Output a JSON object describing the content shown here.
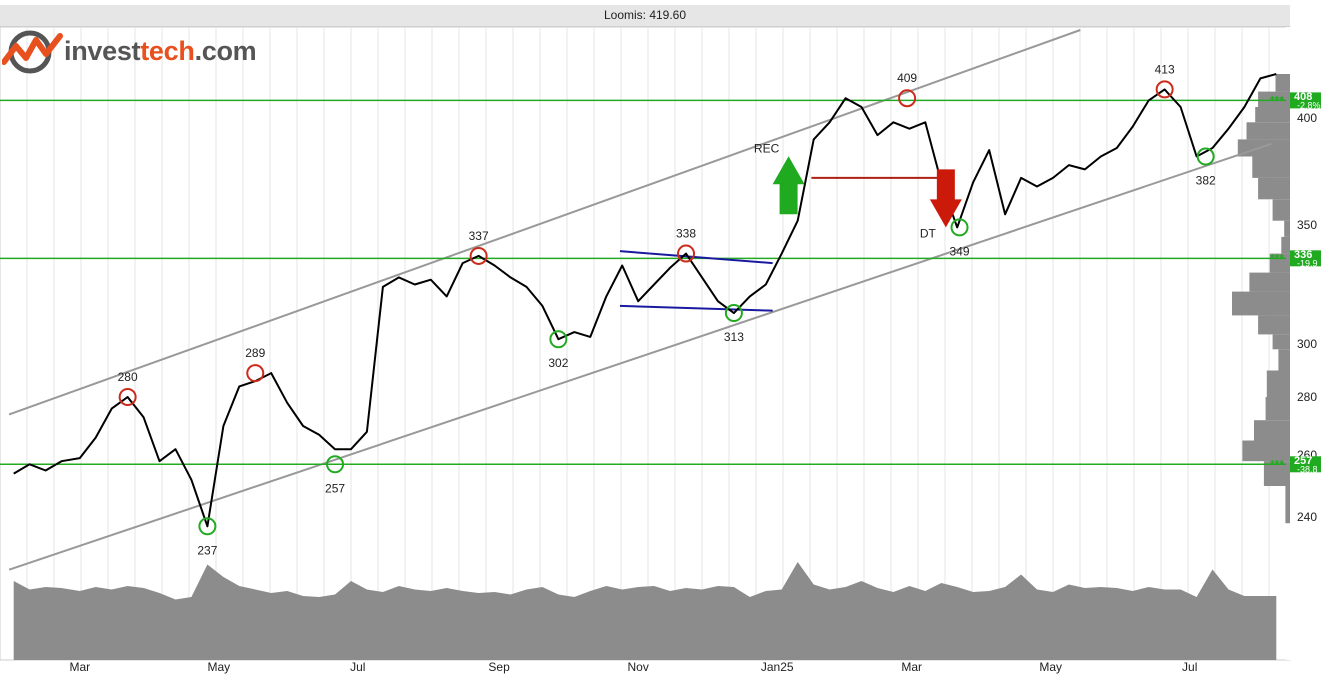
{
  "brand": {
    "prefix": "invest",
    "accent": "tech",
    "suffix": ".com"
  },
  "chart_data": {
    "type": "line",
    "title": "Loomis: 419.60",
    "y_axis": {
      "side": "right",
      "ticks": [
        240,
        260,
        280,
        300,
        350,
        400
      ]
    },
    "x_axis": {
      "ticks": [
        "Mar",
        "May",
        "Jul",
        "Sep",
        "Nov",
        "Jan25",
        "Mar",
        "May",
        "Jul"
      ]
    },
    "price_series": {
      "x": [
        "2024-02-01",
        "2024-02-08",
        "2024-02-15",
        "2024-02-22",
        "2024-03-01",
        "2024-03-08",
        "2024-03-15",
        "2024-03-22",
        "2024-03-29",
        "2024-04-05",
        "2024-04-12",
        "2024-04-19",
        "2024-04-26",
        "2024-05-03",
        "2024-05-10",
        "2024-05-17",
        "2024-05-24",
        "2024-05-31",
        "2024-06-07",
        "2024-06-14",
        "2024-06-21",
        "2024-06-28",
        "2024-07-05",
        "2024-07-12",
        "2024-07-19",
        "2024-07-26",
        "2024-08-02",
        "2024-08-09",
        "2024-08-16",
        "2024-08-23",
        "2024-08-30",
        "2024-09-06",
        "2024-09-13",
        "2024-09-20",
        "2024-09-27",
        "2024-10-04",
        "2024-10-11",
        "2024-10-18",
        "2024-10-25",
        "2024-11-01",
        "2024-11-08",
        "2024-11-15",
        "2024-11-22",
        "2024-11-29",
        "2024-12-06",
        "2024-12-13",
        "2024-12-20",
        "2024-12-27",
        "2025-01-03",
        "2025-01-10",
        "2025-01-17",
        "2025-01-24",
        "2025-01-31",
        "2025-02-07",
        "2025-02-14",
        "2025-02-21",
        "2025-02-28",
        "2025-03-07",
        "2025-03-14",
        "2025-03-21",
        "2025-03-28",
        "2025-04-04",
        "2025-04-11",
        "2025-04-18",
        "2025-04-25",
        "2025-05-02",
        "2025-05-09",
        "2025-05-16",
        "2025-05-23",
        "2025-05-30",
        "2025-06-06",
        "2025-06-13",
        "2025-06-20",
        "2025-06-27",
        "2025-07-04",
        "2025-07-11",
        "2025-07-18",
        "2025-07-25",
        "2025-08-01",
        "2025-08-08"
      ],
      "values": [
        254,
        257,
        255,
        258,
        259,
        266,
        276,
        280,
        273,
        258,
        262,
        252,
        237,
        270,
        284,
        286,
        289,
        278,
        270,
        267,
        262,
        262,
        268,
        324,
        328,
        325,
        327,
        320,
        334,
        337,
        333,
        328,
        324,
        316,
        302,
        305,
        303,
        320,
        333,
        318,
        325,
        332,
        338,
        328,
        318,
        313,
        320,
        325,
        338,
        352,
        390,
        398,
        409,
        405,
        392,
        398,
        395,
        398,
        370,
        349,
        370,
        385,
        355,
        372,
        368,
        372,
        378,
        376,
        382,
        386,
        396,
        408,
        413,
        405,
        382,
        386,
        395,
        405,
        418,
        420
      ]
    },
    "channel_lines": [
      {
        "name": "upper",
        "from": [
          "2024-01-30",
          274
        ],
        "to": [
          "2025-05-14",
          440
        ]
      },
      {
        "name": "lower",
        "from": [
          "2024-01-30",
          223
        ],
        "to": [
          "2025-08-06",
          388
        ]
      }
    ],
    "triangle_lines": [
      {
        "from": [
          "2024-10-24",
          339
        ],
        "to": [
          "2024-12-30",
          334
        ]
      },
      {
        "from": [
          "2024-10-24",
          316
        ],
        "to": [
          "2024-12-30",
          314
        ]
      }
    ],
    "breakdown_line": {
      "from": [
        "2025-01-16",
        372
      ],
      "to": [
        "2025-03-14",
        372
      ]
    },
    "horizontal_levels": [
      {
        "value": 408,
        "label": "408",
        "change": "-2.8%"
      },
      {
        "value": 336,
        "label": "336",
        "change": "-19.9"
      },
      {
        "value": 257,
        "label": "257",
        "change": "-38.8"
      }
    ],
    "level_marker": "***",
    "peaks": [
      {
        "x": "2024-03-22",
        "value": 280,
        "label": "280"
      },
      {
        "x": "2024-05-17",
        "value": 289,
        "label": "289"
      },
      {
        "x": "2024-08-23",
        "value": 337,
        "label": "337"
      },
      {
        "x": "2024-11-22",
        "value": 338,
        "label": "338"
      },
      {
        "x": "2025-02-27",
        "value": 409,
        "label": "409"
      },
      {
        "x": "2025-06-20",
        "value": 413,
        "label": "413"
      }
    ],
    "troughs": [
      {
        "x": "2024-04-26",
        "value": 237,
        "label": "237"
      },
      {
        "x": "2024-06-21",
        "value": 257,
        "label": "257"
      },
      {
        "x": "2024-09-27",
        "value": 302,
        "label": "302"
      },
      {
        "x": "2024-12-13",
        "value": 313,
        "label": "313"
      },
      {
        "x": "2025-03-22",
        "value": 349,
        "label": "349"
      },
      {
        "x": "2025-07-08",
        "value": 382,
        "label": "382"
      }
    ],
    "signals": [
      {
        "type": "buy",
        "label": "REC",
        "x": "2025-01-06",
        "value": 355
      },
      {
        "type": "sell",
        "label": "DT",
        "x": "2025-03-16",
        "value": 362
      }
    ],
    "volume": [
      0.62,
      0.45,
      0.5,
      0.48,
      0.42,
      0.5,
      0.45,
      0.52,
      0.48,
      0.38,
      0.25,
      0.3,
      0.95,
      0.7,
      0.52,
      0.45,
      0.38,
      0.42,
      0.32,
      0.3,
      0.35,
      0.62,
      0.45,
      0.4,
      0.52,
      0.45,
      0.42,
      0.48,
      0.42,
      0.38,
      0.4,
      0.35,
      0.45,
      0.5,
      0.35,
      0.3,
      0.42,
      0.52,
      0.45,
      0.5,
      0.52,
      0.42,
      0.48,
      0.45,
      0.52,
      0.5,
      0.3,
      0.42,
      0.45,
      1.0,
      0.55,
      0.45,
      0.5,
      0.62,
      0.48,
      0.4,
      0.52,
      0.42,
      0.58,
      0.5,
      0.4,
      0.42,
      0.5,
      0.75,
      0.45,
      0.4,
      0.55,
      0.48,
      0.5,
      0.48,
      0.42,
      0.5,
      0.45,
      0.45,
      0.3,
      0.85,
      0.45,
      0.32,
      0.32,
      0.32
    ],
    "volume_profile": [
      {
        "low": 238,
        "high": 250,
        "weight": 0.08
      },
      {
        "low": 250,
        "high": 258,
        "weight": 0.45
      },
      {
        "low": 258,
        "high": 265,
        "weight": 0.82
      },
      {
        "low": 265,
        "high": 272,
        "weight": 0.62
      },
      {
        "low": 272,
        "high": 280,
        "weight": 0.42
      },
      {
        "low": 280,
        "high": 290,
        "weight": 0.4
      },
      {
        "low": 290,
        "high": 298,
        "weight": 0.2
      },
      {
        "low": 298,
        "high": 304,
        "weight": 0.3
      },
      {
        "low": 304,
        "high": 312,
        "weight": 0.55
      },
      {
        "low": 312,
        "high": 322,
        "weight": 1.0
      },
      {
        "low": 322,
        "high": 330,
        "weight": 0.7
      },
      {
        "low": 330,
        "high": 338,
        "weight": 0.35
      },
      {
        "low": 338,
        "high": 345,
        "weight": 0.15
      },
      {
        "low": 345,
        "high": 352,
        "weight": 0.1
      },
      {
        "low": 352,
        "high": 362,
        "weight": 0.3
      },
      {
        "low": 362,
        "high": 372,
        "weight": 0.55
      },
      {
        "low": 372,
        "high": 382,
        "weight": 0.65
      },
      {
        "low": 382,
        "high": 390,
        "weight": 0.9
      },
      {
        "low": 390,
        "high": 398,
        "weight": 0.75
      },
      {
        "low": 398,
        "high": 405,
        "weight": 0.6
      },
      {
        "low": 405,
        "high": 412,
        "weight": 0.55
      },
      {
        "low": 412,
        "high": 420,
        "weight": 0.25
      }
    ],
    "colors": {
      "price": "#000000",
      "channel": "#999999",
      "level": "#22aa22",
      "triangle": "#1a1aa0",
      "breakdown": "#b02010",
      "buy": "#1faa1f",
      "sell": "#cc1a0a",
      "peak_marker": "#cc2a1a",
      "trough_marker": "#22aa22",
      "volume": "#8c8c8c",
      "grid": "#e6e6e6"
    }
  }
}
